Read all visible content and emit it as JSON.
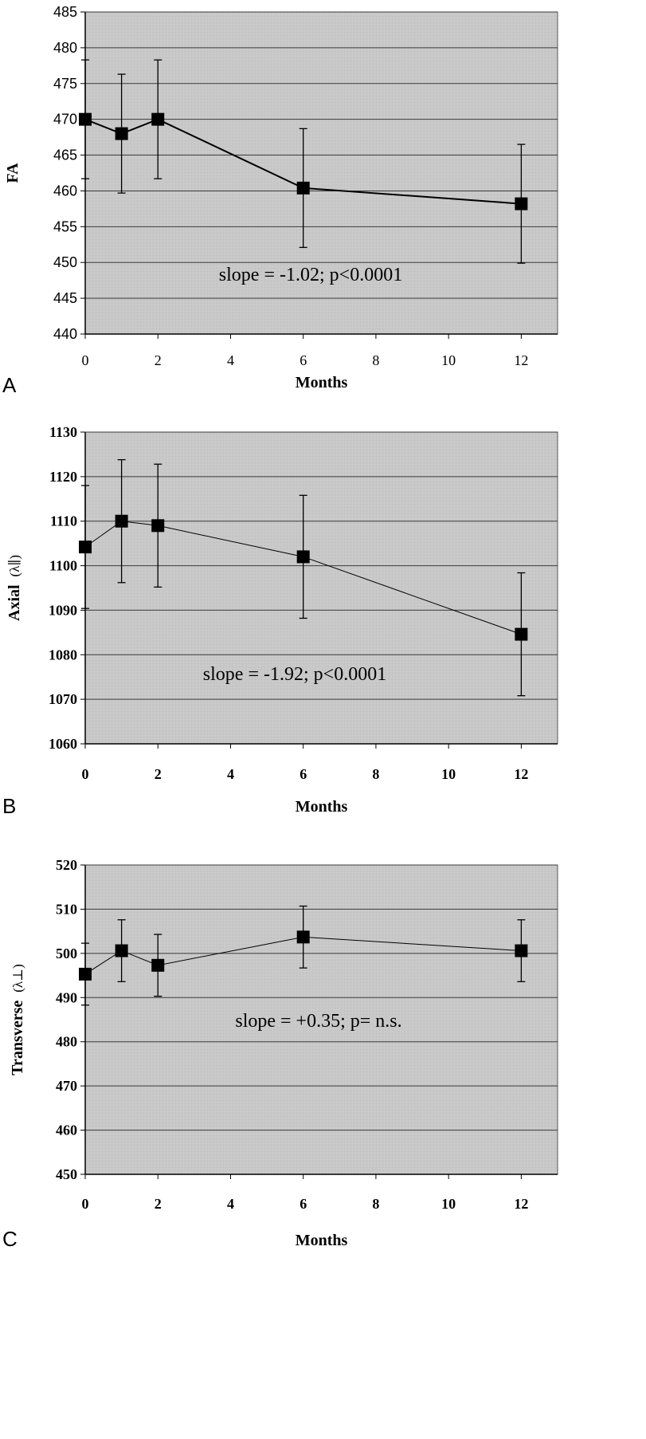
{
  "chart_data": [
    {
      "type": "line",
      "panel_label": "A",
      "ylabel": "FA",
      "ylabel_symbol": "",
      "xlabel": "Months",
      "x_ticks": [
        0,
        2,
        4,
        6,
        8,
        10,
        12
      ],
      "xlim": [
        0,
        13
      ],
      "y_ticks": [
        440,
        445,
        450,
        455,
        460,
        465,
        470,
        475,
        480,
        485
      ],
      "ylim": [
        440,
        485
      ],
      "annotation": "slope = -1.02; p<0.0001",
      "series": [
        {
          "name": "FA",
          "x": [
            0,
            1,
            2,
            6,
            12
          ],
          "y": [
            470.0,
            468.0,
            470.0,
            460.4,
            458.2
          ],
          "error": [
            8.3,
            8.3,
            8.3,
            8.3,
            8.3
          ]
        }
      ]
    },
    {
      "type": "line",
      "panel_label": "B",
      "ylabel": "Axial",
      "ylabel_symbol": "(λ∥)",
      "xlabel": "Months",
      "x_ticks": [
        0,
        2,
        4,
        6,
        8,
        10,
        12
      ],
      "xlim": [
        0,
        13
      ],
      "y_ticks": [
        1060,
        1070,
        1080,
        1090,
        1100,
        1110,
        1120,
        1130
      ],
      "ylim": [
        1060,
        1130
      ],
      "annotation": "slope = -1.92; p<0.0001",
      "series": [
        {
          "name": "Axial",
          "x": [
            0,
            1,
            2,
            6,
            12
          ],
          "y": [
            1104.2,
            1110.0,
            1109.0,
            1102.0,
            1084.6
          ],
          "error": [
            13.8,
            13.8,
            13.8,
            13.8,
            13.8
          ]
        }
      ]
    },
    {
      "type": "line",
      "panel_label": "C",
      "ylabel": "Transverse",
      "ylabel_symbol": "(λ⊥)",
      "xlabel": "Months",
      "x_ticks": [
        0,
        2,
        4,
        6,
        8,
        10,
        12
      ],
      "xlim": [
        0,
        13
      ],
      "y_ticks": [
        450,
        460,
        470,
        480,
        490,
        500,
        510,
        520
      ],
      "ylim": [
        450,
        520
      ],
      "annotation": "slope = +0.35; p= n.s.",
      "series": [
        {
          "name": "Transverse",
          "x": [
            0,
            1,
            2,
            6,
            12
          ],
          "y": [
            495.3,
            500.6,
            497.3,
            503.7,
            500.6
          ],
          "error": [
            7.0,
            7.0,
            7.0,
            7.0,
            7.0
          ]
        }
      ]
    }
  ]
}
